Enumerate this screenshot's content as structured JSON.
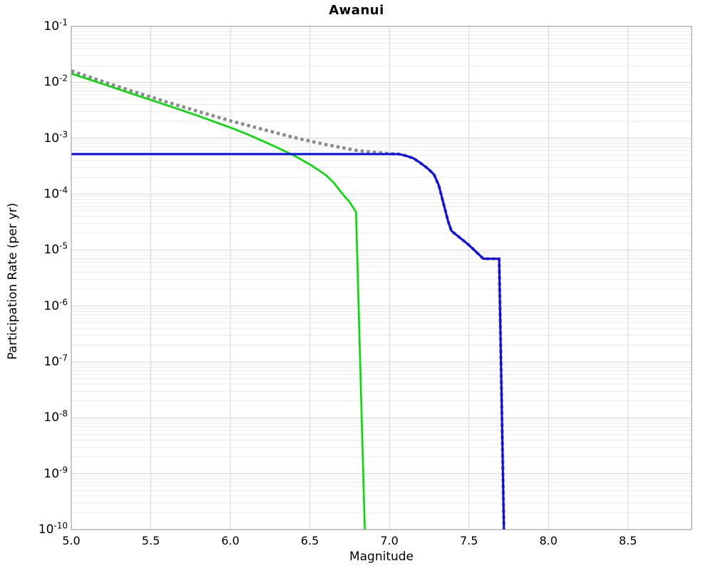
{
  "chart_data": {
    "type": "line",
    "title": "Awanui",
    "xlabel": "Magnitude",
    "ylabel": "Participation Rate (per yr)",
    "xlim": [
      5.0,
      8.9
    ],
    "ylim": [
      1e-10,
      0.1
    ],
    "x_scale": "linear",
    "y_scale": "log",
    "grid": "on",
    "legend": "none",
    "xticks": [
      "5.0",
      "5.5",
      "6.0",
      "6.5",
      "7.0",
      "7.5",
      "8.0",
      "8.5"
    ],
    "ytick_exponents": [
      -1,
      -2,
      -3,
      -4,
      -5,
      -6,
      -7,
      -8,
      -9,
      -10
    ],
    "colors": {
      "background": "#ffffff",
      "frame": "#8f8f8f",
      "grid_major": "#d6d6d6",
      "grid_minor": "#ebebeb",
      "text": "#000000"
    },
    "series": [
      {
        "name": "total-dotted",
        "color": "#8a8a8a",
        "style": "dotted",
        "width": 4.5,
        "points": [
          [
            5.0,
            0.016
          ],
          [
            5.2,
            0.0103
          ],
          [
            5.4,
            0.0067
          ],
          [
            5.6,
            0.00445
          ],
          [
            5.8,
            0.003
          ],
          [
            6.0,
            0.00205
          ],
          [
            6.2,
            0.00145
          ],
          [
            6.4,
            0.00103
          ],
          [
            6.6,
            0.00077
          ],
          [
            6.8,
            0.0006
          ],
          [
            7.0,
            0.00053
          ],
          [
            7.06,
            0.00052
          ],
          [
            7.1,
            0.00049
          ],
          [
            7.15,
            0.00044
          ],
          [
            7.19,
            0.00037
          ],
          [
            7.24,
            0.00029
          ],
          [
            7.28,
            0.000225
          ],
          [
            7.31,
            0.000145
          ],
          [
            7.34,
            6.8e-05
          ],
          [
            7.37,
            3.2e-05
          ],
          [
            7.39,
            2.2e-05
          ],
          [
            7.45,
            1.6e-05
          ],
          [
            7.49,
            1.3e-05
          ],
          [
            7.54,
            9.6e-06
          ],
          [
            7.59,
            7e-06
          ],
          [
            7.69,
            7e-06
          ],
          [
            7.72,
            1e-10
          ]
        ]
      },
      {
        "name": "green-curve",
        "color": "#00dd00",
        "style": "solid",
        "width": 2.6,
        "points": [
          [
            5.0,
            0.0143
          ],
          [
            5.2,
            0.0093
          ],
          [
            5.4,
            0.006
          ],
          [
            5.6,
            0.0039
          ],
          [
            5.8,
            0.0025
          ],
          [
            6.0,
            0.00155
          ],
          [
            6.1,
            0.0012
          ],
          [
            6.2,
            0.0009
          ],
          [
            6.3,
            0.00067
          ],
          [
            6.4,
            0.00049
          ],
          [
            6.5,
            0.00034
          ],
          [
            6.6,
            0.00022
          ],
          [
            6.65,
            0.00016
          ],
          [
            6.7,
            0.000105
          ],
          [
            6.75,
            7.2e-05
          ],
          [
            6.79,
            4.8e-05
          ],
          [
            6.845,
            1e-10
          ]
        ]
      },
      {
        "name": "blue-curve",
        "color": "#0b0bf0",
        "style": "solid",
        "width": 3,
        "points": [
          [
            5.0,
            0.00052
          ],
          [
            7.06,
            0.00052
          ],
          [
            7.1,
            0.00049
          ],
          [
            7.15,
            0.00044
          ],
          [
            7.19,
            0.00037
          ],
          [
            7.24,
            0.00029
          ],
          [
            7.28,
            0.000225
          ],
          [
            7.31,
            0.000145
          ],
          [
            7.34,
            6.8e-05
          ],
          [
            7.37,
            3.2e-05
          ],
          [
            7.39,
            2.2e-05
          ],
          [
            7.45,
            1.6e-05
          ],
          [
            7.49,
            1.3e-05
          ],
          [
            7.54,
            9.6e-06
          ],
          [
            7.59,
            7e-06
          ],
          [
            7.69,
            7e-06
          ],
          [
            7.72,
            1e-10
          ]
        ]
      }
    ]
  }
}
